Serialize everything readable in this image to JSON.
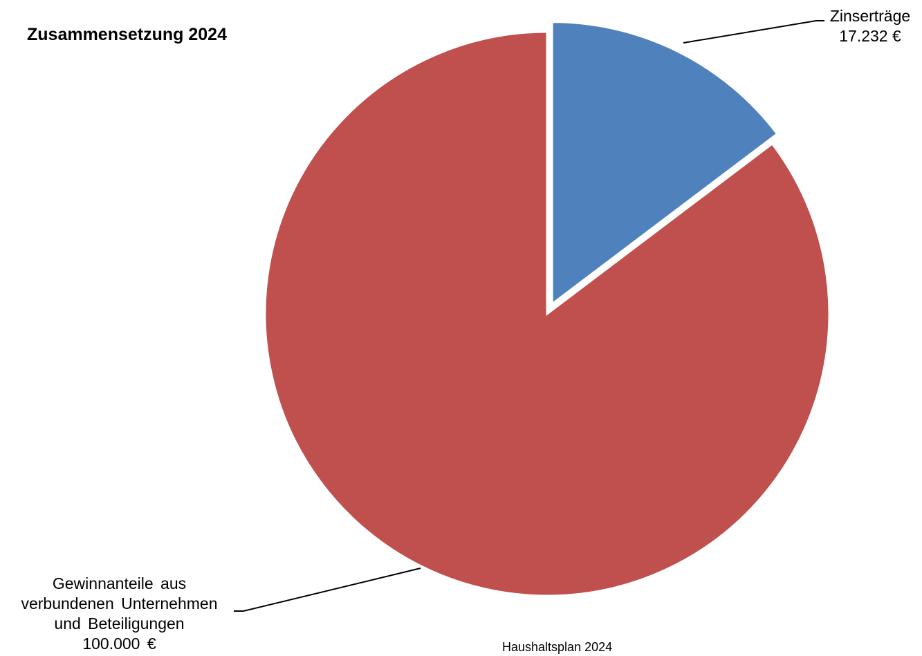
{
  "chart_data": {
    "type": "pie",
    "title": "Zusammensetzung 2024",
    "footer": "Haushaltsplan 2024",
    "slices": [
      {
        "label_lines": [
          "Zinserträge"
        ],
        "value": 17232,
        "value_label": "17.232 €",
        "color": "#4F81BD",
        "exploded": true
      },
      {
        "label_lines": [
          "Gewinnanteile aus",
          "verbundenen Unternehmen",
          "und Beteiligungen"
        ],
        "value": 100000,
        "value_label": "100.000 €",
        "color": "#C0504D",
        "exploded": false
      }
    ],
    "legend": "none",
    "start_angle": "12 o'clock, clockwise"
  }
}
